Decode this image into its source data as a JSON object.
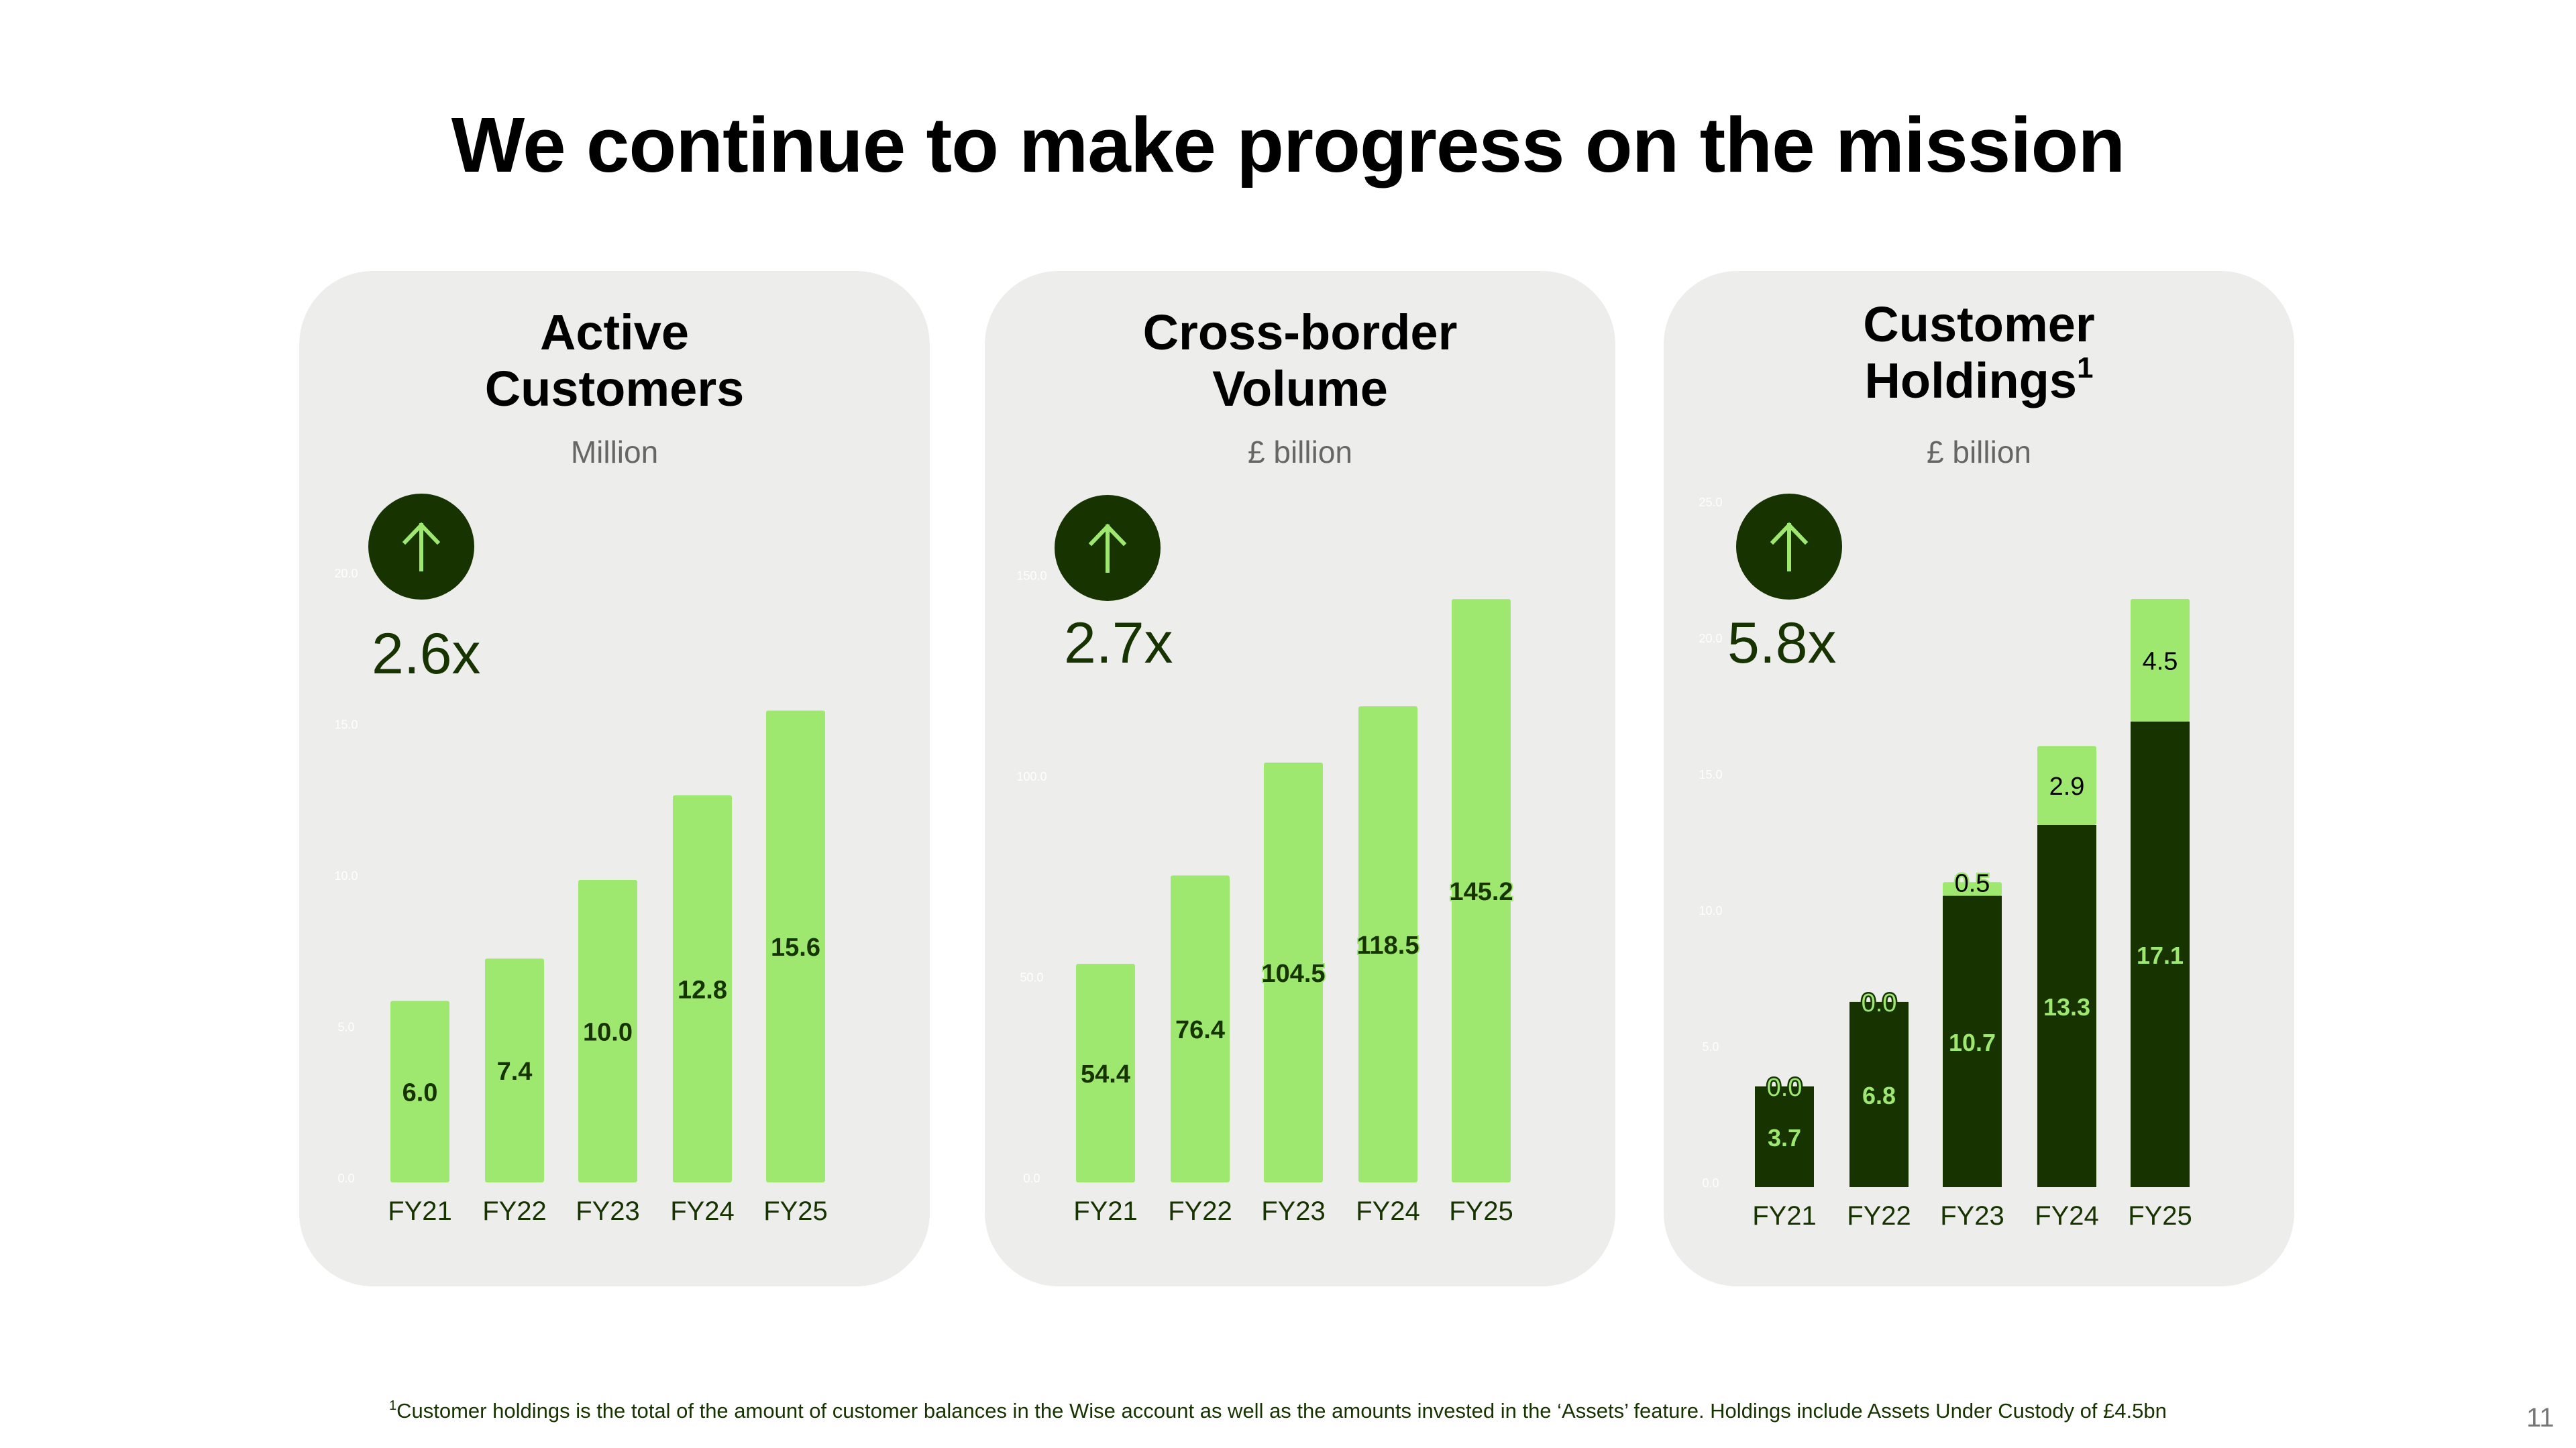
{
  "title": "We continue to make progress on the mission",
  "colors": {
    "card_bg": "#edeeec",
    "bright_green": "#9fe870",
    "forest_green": "#163300",
    "tick_white": "#ffffff"
  },
  "cards": [
    {
      "title_line1": "Active",
      "title_line2": "Customers",
      "title_sup": "",
      "unit": "Million",
      "badge_icon": "arrow-up-icon",
      "multiplier": "2.6x"
    },
    {
      "title_line1": "Cross-border",
      "title_line2": "Volume",
      "title_sup": "",
      "unit": "£ billion",
      "badge_icon": "arrow-up-icon",
      "multiplier": "2.7x"
    },
    {
      "title_line1": "Customer",
      "title_line2": "Holdings",
      "title_sup": "1",
      "unit": "£ billion",
      "badge_icon": "arrow-up-icon",
      "multiplier": "5.8x"
    }
  ],
  "chart_data": [
    {
      "type": "bar",
      "title": "Active Customers",
      "ylabel": "Million",
      "categories": [
        "FY21",
        "FY22",
        "FY23",
        "FY24",
        "FY25"
      ],
      "values": [
        6.0,
        7.4,
        10.0,
        12.8,
        15.6
      ],
      "data_labels": [
        "6.0",
        "7.4",
        "10.0",
        "12.8",
        "15.6"
      ],
      "yticks": [
        "0.0",
        "5.0",
        "10.0",
        "15.0",
        "20.0"
      ],
      "ylim": [
        0,
        20
      ],
      "grid": false,
      "legend": "none"
    },
    {
      "type": "bar",
      "title": "Cross-border Volume",
      "ylabel": "£ billion",
      "categories": [
        "FY21",
        "FY22",
        "FY23",
        "FY24",
        "FY25"
      ],
      "values": [
        54.4,
        76.4,
        104.5,
        118.5,
        145.2
      ],
      "data_labels": [
        "54.4",
        "76.4",
        "104.5",
        "118.5",
        "145.2"
      ],
      "yticks": [
        "0.0",
        "50.0",
        "100.0",
        "150.0"
      ],
      "ylim": [
        0,
        150
      ],
      "grid": false,
      "legend": "none"
    },
    {
      "type": "bar",
      "stacked": true,
      "title": "Customer Holdings",
      "ylabel": "£ billion",
      "categories": [
        "FY21",
        "FY22",
        "FY23",
        "FY24",
        "FY25"
      ],
      "series": [
        {
          "name": "Customer balances",
          "color": "#163300",
          "values": [
            3.7,
            6.8,
            10.7,
            13.3,
            17.1
          ],
          "labels": [
            "3.7",
            "6.8",
            "10.7",
            "13.3",
            "17.1"
          ]
        },
        {
          "name": "Assets",
          "color": "#9fe870",
          "values": [
            0.0,
            0.0,
            0.5,
            2.9,
            4.5
          ],
          "labels": [
            "0.0",
            "0.0",
            "0.5",
            "2.9",
            "4.5"
          ]
        }
      ],
      "yticks": [
        "0.0",
        "5.0",
        "10.0",
        "15.0",
        "20.0",
        "25.0"
      ],
      "ylim": [
        0,
        25
      ],
      "grid": false,
      "legend": "none"
    }
  ],
  "footnote": {
    "marker": "1",
    "text": "Customer holdings is the total of the amount of customer balances in the Wise account as well as the amounts invested in the ‘Assets’ feature. Holdings include Assets Under Custody of £4.5bn"
  },
  "page_number": "11"
}
